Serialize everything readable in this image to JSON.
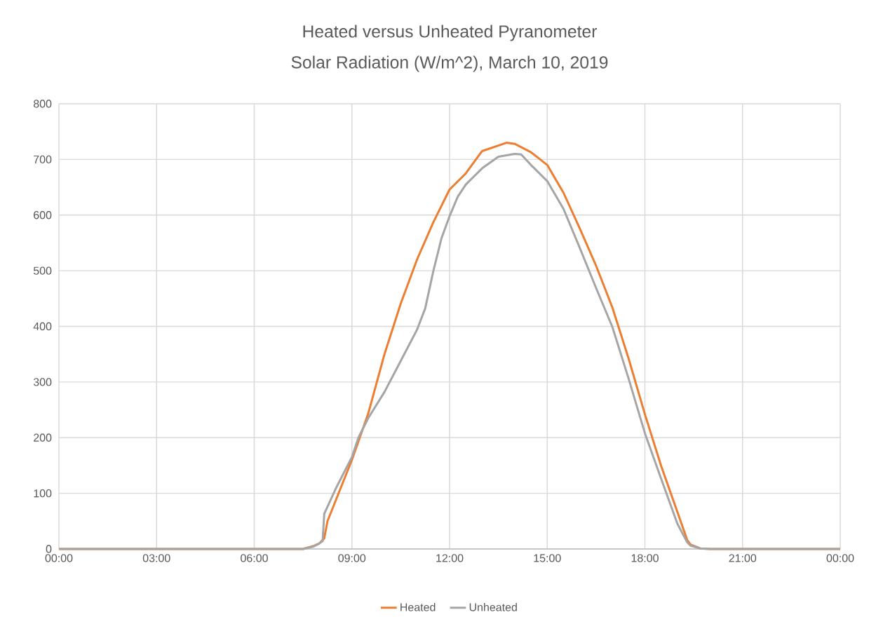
{
  "chart_data": {
    "type": "line",
    "title": "Heated versus Unheated Pyranometer",
    "subtitle": "Solar Radiation (W/m^2), March 10, 2019",
    "xlim": [
      0,
      24
    ],
    "ylim": [
      0,
      800
    ],
    "xticks": [
      {
        "value": 0,
        "label": "00:00"
      },
      {
        "value": 3,
        "label": "03:00"
      },
      {
        "value": 6,
        "label": "06:00"
      },
      {
        "value": 9,
        "label": "09:00"
      },
      {
        "value": 12,
        "label": "12:00"
      },
      {
        "value": 15,
        "label": "15:00"
      },
      {
        "value": 18,
        "label": "18:00"
      },
      {
        "value": 21,
        "label": "21:00"
      },
      {
        "value": 24,
        "label": "00:00"
      }
    ],
    "yticks": [
      0,
      100,
      200,
      300,
      400,
      500,
      600,
      700,
      800
    ],
    "grid": true,
    "legend": "bottom",
    "series": [
      {
        "name": "Heated",
        "color": "#ed7d31",
        "x": [
          0,
          7.5,
          7.8,
          8.0,
          8.15,
          8.25,
          9.0,
          9.5,
          10,
          10.5,
          11,
          11.5,
          12,
          12.5,
          13,
          13.75,
          14,
          14.5,
          15,
          15.5,
          16,
          16.5,
          17,
          17.5,
          18,
          18.5,
          19,
          19.3,
          19.4,
          19.7,
          20,
          24
        ],
        "values": [
          0,
          0,
          5,
          10,
          19,
          50,
          160,
          243,
          350,
          441,
          520,
          587,
          646,
          675,
          715,
          730,
          728,
          713,
          690,
          640,
          576,
          509,
          434,
          342,
          242,
          149,
          66,
          16,
          8,
          1,
          0,
          0
        ]
      },
      {
        "name": "Unheated",
        "color": "#a5a5a5",
        "x": [
          0,
          7.5,
          7.8,
          8.0,
          8.1,
          8.15,
          8.5,
          9.0,
          9.2,
          9.5,
          10,
          10.5,
          11,
          11.25,
          11.5,
          11.75,
          12,
          12.25,
          12.5,
          13,
          13.5,
          14,
          14.2,
          14.5,
          15,
          15.5,
          16,
          16.5,
          17,
          17.5,
          18,
          18.5,
          19,
          19.3,
          19.4,
          19.7,
          20,
          24
        ],
        "values": [
          0,
          0,
          4,
          10,
          14,
          63,
          108,
          165,
          200,
          235,
          282,
          338,
          394,
          432,
          499,
          558,
          598,
          633,
          655,
          684,
          705,
          710,
          709,
          690,
          661,
          611,
          541,
          469,
          399,
          306,
          208,
          126,
          45,
          12,
          6,
          1,
          0,
          0
        ]
      }
    ]
  }
}
